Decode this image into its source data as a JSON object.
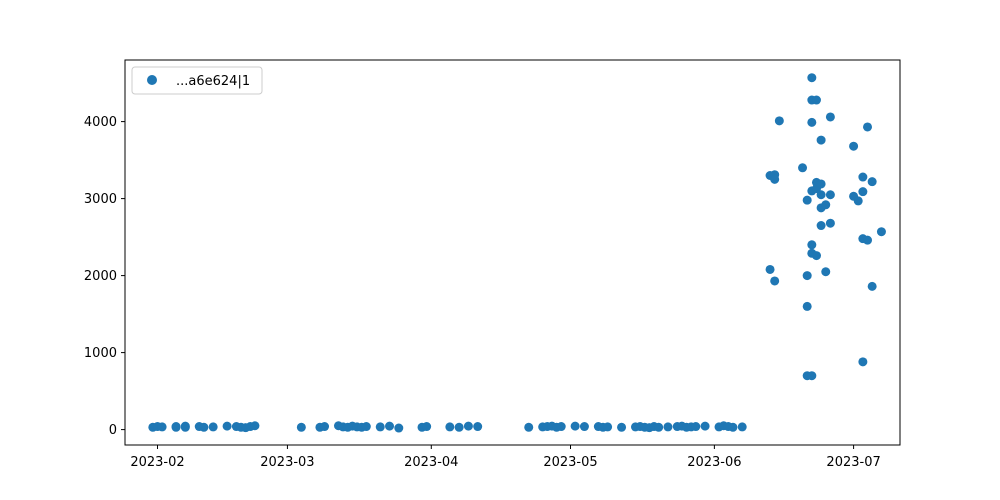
{
  "chart_data": {
    "type": "scatter",
    "title": "",
    "xlabel": "",
    "ylabel": "",
    "x_axis_type": "date",
    "xlim": [
      "2023-01-25",
      "2023-07-11"
    ],
    "ylim": [
      -200,
      4800
    ],
    "x_ticks": [
      "2023-02",
      "2023-03",
      "2023-04",
      "2023-05",
      "2023-06",
      "2023-07"
    ],
    "x_tick_labels": [
      "2023-02",
      "2023-03",
      "2023-04",
      "2023-05",
      "2023-06",
      "2023-07"
    ],
    "y_ticks": [
      0,
      1000,
      2000,
      3000,
      4000
    ],
    "y_tick_labels": [
      "0",
      "1000",
      "2000",
      "3000",
      "4000"
    ],
    "grid": false,
    "legend_position": "top-left",
    "point_color": "#1f77b4",
    "series": [
      {
        "name": "...a6e624|1",
        "color": "#1f77b4",
        "points": [
          {
            "x": "2023-01-31",
            "y": 30
          },
          {
            "x": "2023-02-01",
            "y": 40
          },
          {
            "x": "2023-02-02",
            "y": 35
          },
          {
            "x": "2023-02-05",
            "y": 30
          },
          {
            "x": "2023-02-05",
            "y": 40
          },
          {
            "x": "2023-02-07",
            "y": 30
          },
          {
            "x": "2023-02-07",
            "y": 45
          },
          {
            "x": "2023-02-10",
            "y": 40
          },
          {
            "x": "2023-02-11",
            "y": 30
          },
          {
            "x": "2023-02-13",
            "y": 35
          },
          {
            "x": "2023-02-16",
            "y": 45
          },
          {
            "x": "2023-02-18",
            "y": 40
          },
          {
            "x": "2023-02-19",
            "y": 30
          },
          {
            "x": "2023-02-20",
            "y": 25
          },
          {
            "x": "2023-02-21",
            "y": 40
          },
          {
            "x": "2023-02-22",
            "y": 50
          },
          {
            "x": "2023-03-04",
            "y": 30
          },
          {
            "x": "2023-03-08",
            "y": 30
          },
          {
            "x": "2023-03-09",
            "y": 40
          },
          {
            "x": "2023-03-12",
            "y": 50
          },
          {
            "x": "2023-03-13",
            "y": 35
          },
          {
            "x": "2023-03-14",
            "y": 30
          },
          {
            "x": "2023-03-15",
            "y": 45
          },
          {
            "x": "2023-03-16",
            "y": 35
          },
          {
            "x": "2023-03-17",
            "y": 30
          },
          {
            "x": "2023-03-18",
            "y": 40
          },
          {
            "x": "2023-03-21",
            "y": 35
          },
          {
            "x": "2023-03-23",
            "y": 45
          },
          {
            "x": "2023-03-25",
            "y": 20
          },
          {
            "x": "2023-03-30",
            "y": 30
          },
          {
            "x": "2023-03-31",
            "y": 40
          },
          {
            "x": "2023-04-05",
            "y": 35
          },
          {
            "x": "2023-04-07",
            "y": 30
          },
          {
            "x": "2023-04-09",
            "y": 45
          },
          {
            "x": "2023-04-11",
            "y": 40
          },
          {
            "x": "2023-04-22",
            "y": 30
          },
          {
            "x": "2023-04-25",
            "y": 35
          },
          {
            "x": "2023-04-26",
            "y": 40
          },
          {
            "x": "2023-04-27",
            "y": 45
          },
          {
            "x": "2023-04-28",
            "y": 30
          },
          {
            "x": "2023-04-29",
            "y": 40
          },
          {
            "x": "2023-05-02",
            "y": 45
          },
          {
            "x": "2023-05-04",
            "y": 40
          },
          {
            "x": "2023-05-07",
            "y": 40
          },
          {
            "x": "2023-05-08",
            "y": 30
          },
          {
            "x": "2023-05-09",
            "y": 35
          },
          {
            "x": "2023-05-12",
            "y": 30
          },
          {
            "x": "2023-05-15",
            "y": 35
          },
          {
            "x": "2023-05-16",
            "y": 40
          },
          {
            "x": "2023-05-17",
            "y": 30
          },
          {
            "x": "2023-05-18",
            "y": 25
          },
          {
            "x": "2023-05-19",
            "y": 40
          },
          {
            "x": "2023-05-20",
            "y": 30
          },
          {
            "x": "2023-05-22",
            "y": 35
          },
          {
            "x": "2023-05-24",
            "y": 40
          },
          {
            "x": "2023-05-25",
            "y": 45
          },
          {
            "x": "2023-05-26",
            "y": 30
          },
          {
            "x": "2023-05-27",
            "y": 35
          },
          {
            "x": "2023-05-28",
            "y": 40
          },
          {
            "x": "2023-05-30",
            "y": 45
          },
          {
            "x": "2023-06-02",
            "y": 35
          },
          {
            "x": "2023-06-03",
            "y": 50
          },
          {
            "x": "2023-06-04",
            "y": 40
          },
          {
            "x": "2023-06-05",
            "y": 30
          },
          {
            "x": "2023-06-07",
            "y": 35
          },
          {
            "x": "2023-06-13",
            "y": 2080
          },
          {
            "x": "2023-06-13",
            "y": 3300
          },
          {
            "x": "2023-06-14",
            "y": 3310
          },
          {
            "x": "2023-06-14",
            "y": 3250
          },
          {
            "x": "2023-06-14",
            "y": 1930
          },
          {
            "x": "2023-06-15",
            "y": 4010
          },
          {
            "x": "2023-06-20",
            "y": 3400
          },
          {
            "x": "2023-06-21",
            "y": 2000
          },
          {
            "x": "2023-06-21",
            "y": 1600
          },
          {
            "x": "2023-06-21",
            "y": 2980
          },
          {
            "x": "2023-06-21",
            "y": 700
          },
          {
            "x": "2023-06-22",
            "y": 4570
          },
          {
            "x": "2023-06-22",
            "y": 4280
          },
          {
            "x": "2023-06-22",
            "y": 3990
          },
          {
            "x": "2023-06-22",
            "y": 2400
          },
          {
            "x": "2023-06-22",
            "y": 2290
          },
          {
            "x": "2023-06-22",
            "y": 3100
          },
          {
            "x": "2023-06-22",
            "y": 700
          },
          {
            "x": "2023-06-23",
            "y": 3130
          },
          {
            "x": "2023-06-23",
            "y": 2260
          },
          {
            "x": "2023-06-23",
            "y": 4280
          },
          {
            "x": "2023-06-23",
            "y": 3210
          },
          {
            "x": "2023-06-24",
            "y": 3760
          },
          {
            "x": "2023-06-24",
            "y": 3050
          },
          {
            "x": "2023-06-24",
            "y": 2880
          },
          {
            "x": "2023-06-24",
            "y": 2650
          },
          {
            "x": "2023-06-24",
            "y": 3190
          },
          {
            "x": "2023-06-25",
            "y": 2050
          },
          {
            "x": "2023-06-25",
            "y": 2920
          },
          {
            "x": "2023-06-26",
            "y": 4060
          },
          {
            "x": "2023-06-26",
            "y": 3050
          },
          {
            "x": "2023-06-26",
            "y": 2680
          },
          {
            "x": "2023-07-01",
            "y": 3680
          },
          {
            "x": "2023-07-01",
            "y": 3030
          },
          {
            "x": "2023-07-02",
            "y": 2970
          },
          {
            "x": "2023-07-03",
            "y": 880
          },
          {
            "x": "2023-07-03",
            "y": 3280
          },
          {
            "x": "2023-07-03",
            "y": 3090
          },
          {
            "x": "2023-07-03",
            "y": 2480
          },
          {
            "x": "2023-07-04",
            "y": 3930
          },
          {
            "x": "2023-07-04",
            "y": 2460
          },
          {
            "x": "2023-07-05",
            "y": 3220
          },
          {
            "x": "2023-07-05",
            "y": 1860
          },
          {
            "x": "2023-07-07",
            "y": 2570
          }
        ]
      }
    ]
  }
}
